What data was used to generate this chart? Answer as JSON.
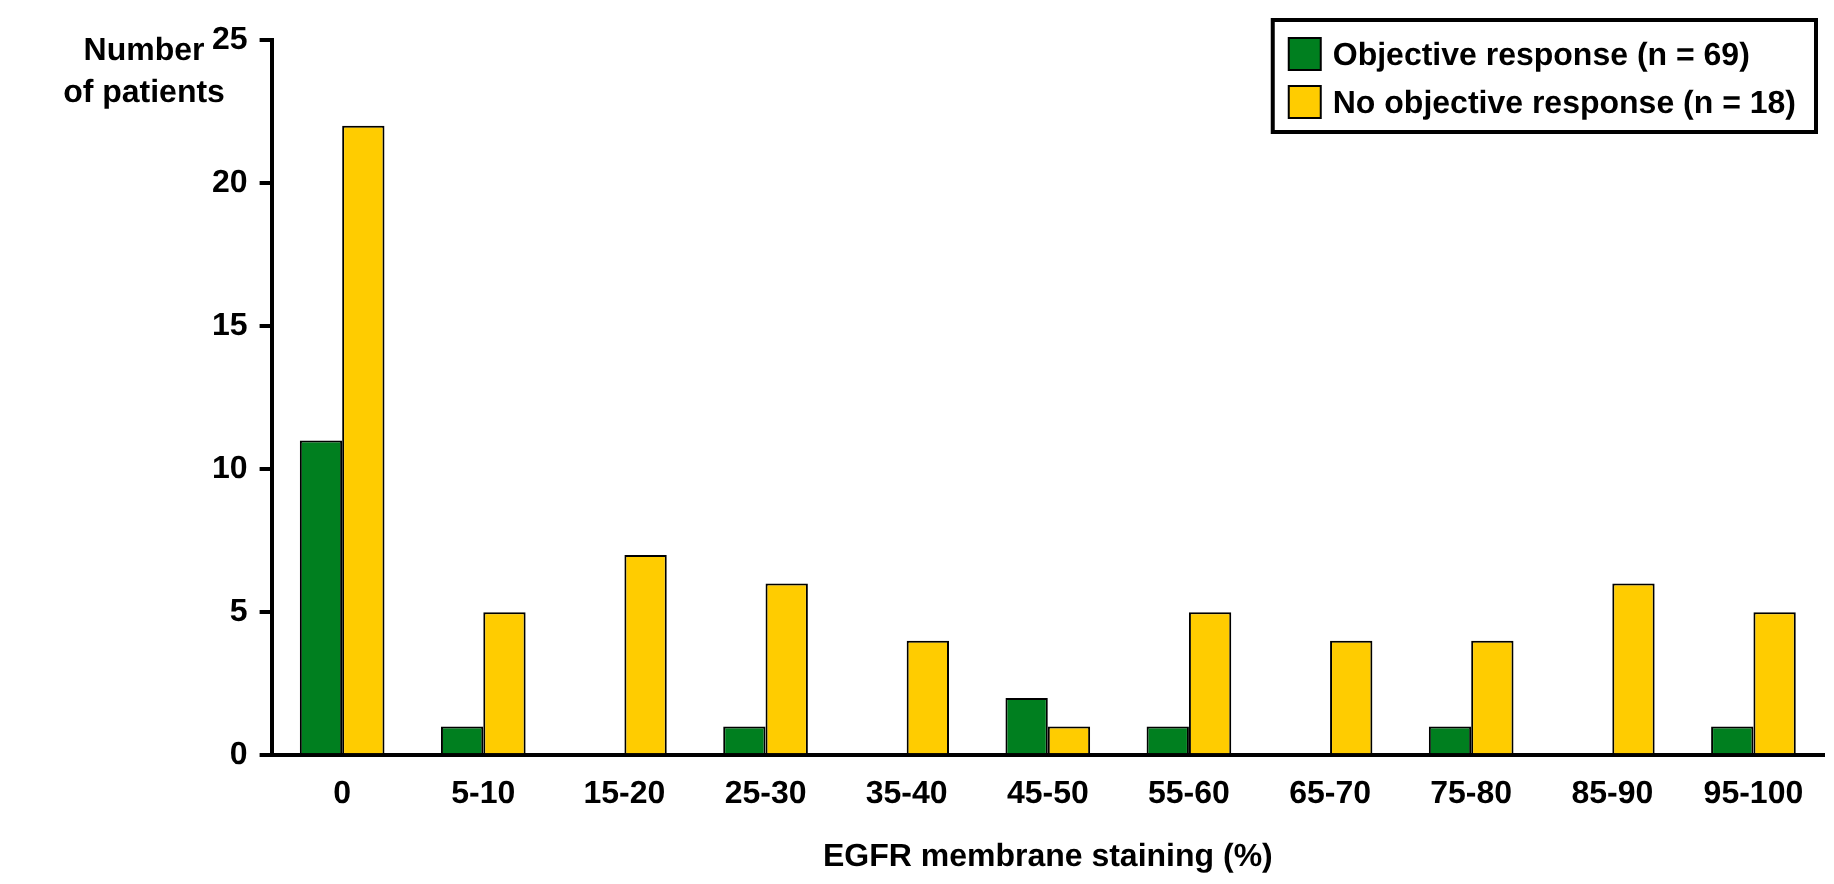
{
  "chart_data": {
    "type": "bar",
    "xlabel": "EGFR membrane staining (%)",
    "ylabel": "Number\nof patients",
    "categories": [
      "0",
      "5-10",
      "15-20",
      "25-30",
      "35-40",
      "45-50",
      "55-60",
      "65-70",
      "75-80",
      "85-90",
      "95-100"
    ],
    "series": [
      {
        "name": "Objective response (n = 69)",
        "color": "#007f1f",
        "values": [
          11,
          1,
          0,
          1,
          0,
          2,
          1,
          0,
          1,
          0,
          1
        ]
      },
      {
        "name": "No objective response (n = 18)",
        "color": "#ffcc00",
        "values": [
          22,
          5,
          7,
          6,
          4,
          1,
          5,
          4,
          4,
          6,
          5
        ]
      }
    ],
    "ylim": [
      0,
      25
    ],
    "yticks": [
      0,
      5,
      10,
      15,
      20,
      25
    ],
    "grid": false,
    "legend": "top right"
  }
}
